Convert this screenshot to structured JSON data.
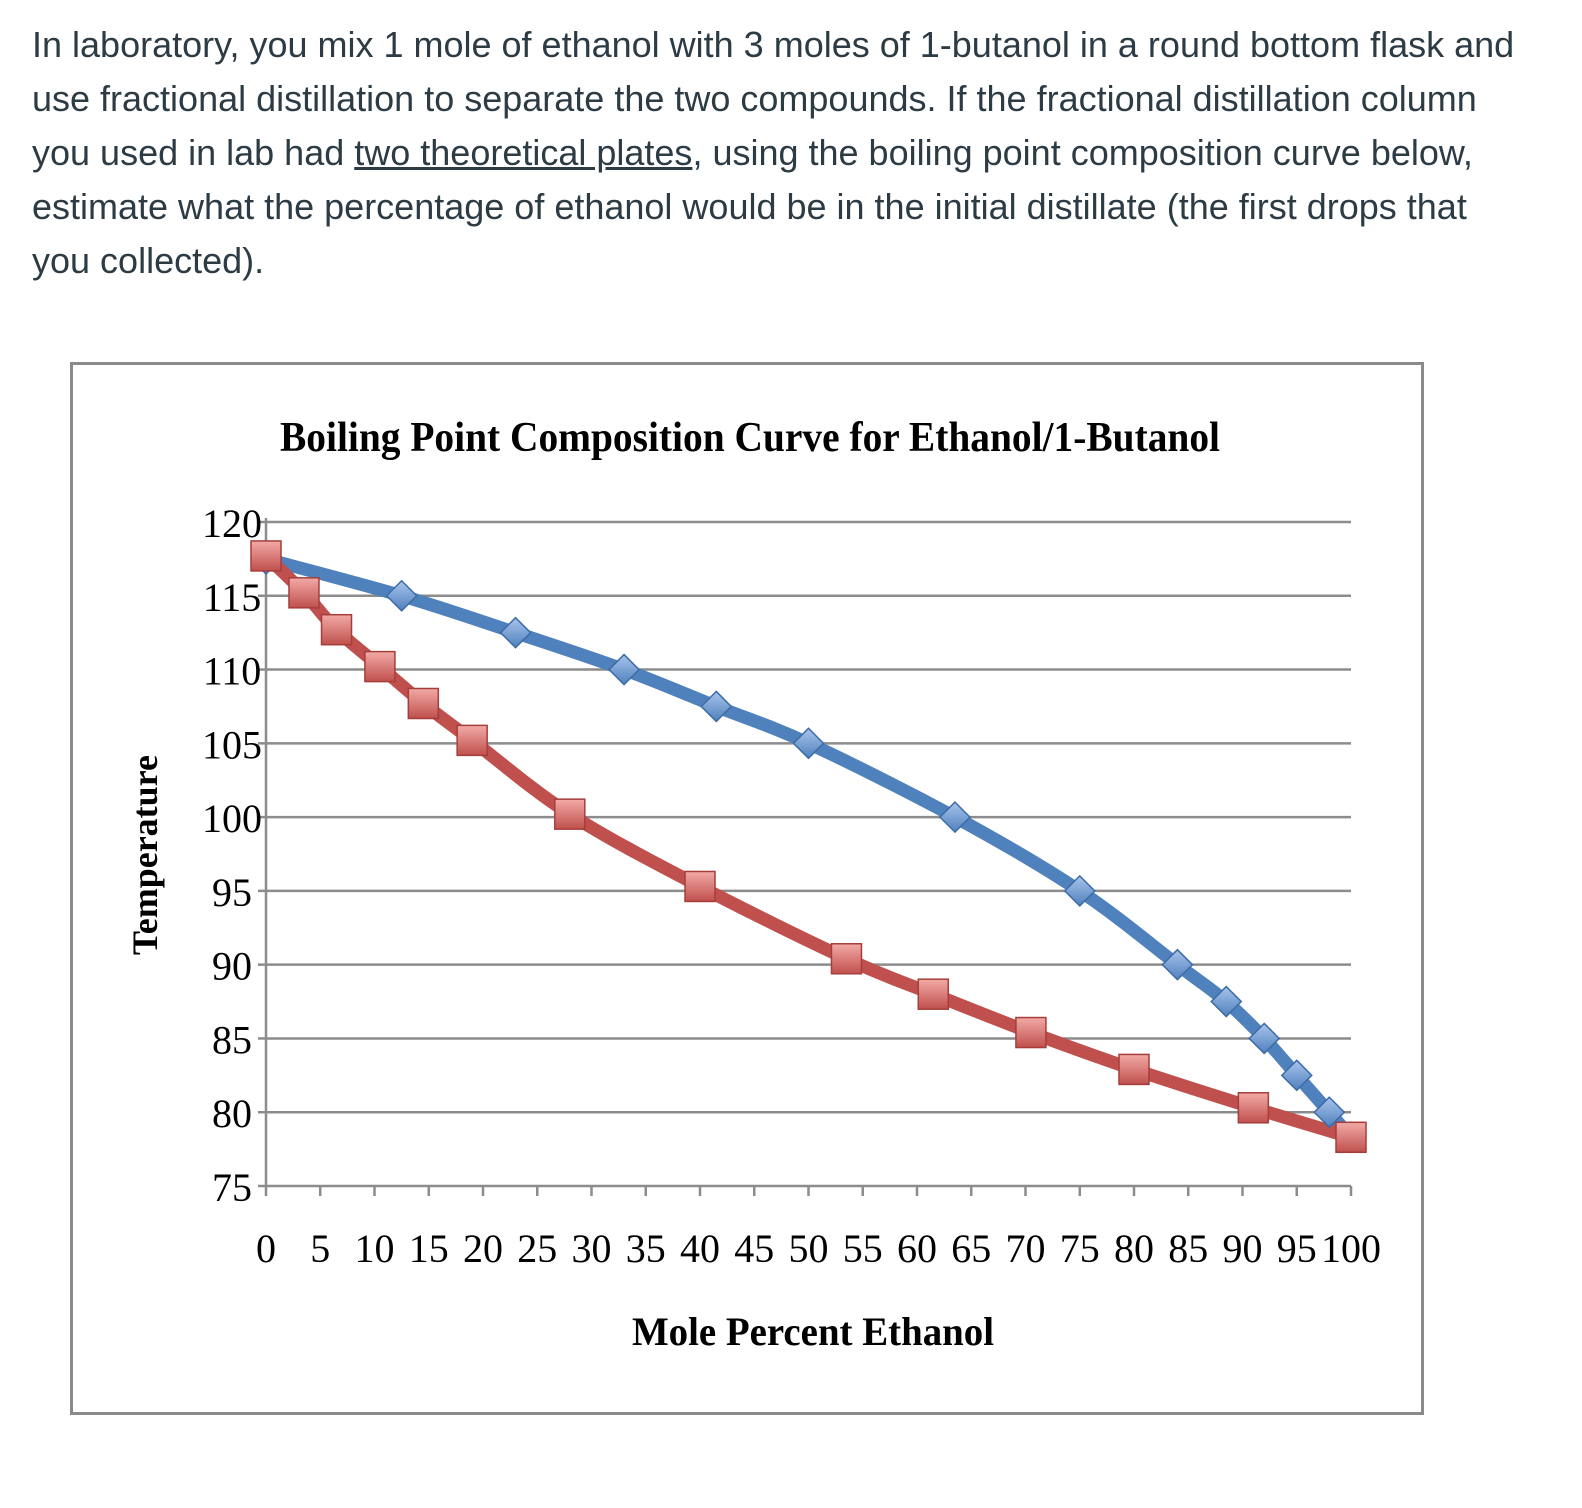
{
  "question": {
    "part1": "In laboratory, you mix 1 mole of ethanol with 3 moles of 1-butanol in a round bottom flask and use fractional distillation to separate the two compounds.  If the fractional distillation column you used in lab had ",
    "underlined": "two theoretical plates",
    "part2": ", using the boiling point composition curve below, estimate what the percentage of ethanol would be in the initial distillate (the first drops that you collected)."
  },
  "chart_data": {
    "type": "line",
    "title": "Boiling Point Composition Curve for Ethanol/1-Butanol",
    "xlabel": "Mole Percent Ethanol",
    "ylabel": "Temperature",
    "xlim": [
      0,
      100
    ],
    "ylim": [
      75,
      120
    ],
    "x_ticks": [
      0,
      5,
      10,
      15,
      20,
      25,
      30,
      35,
      40,
      45,
      50,
      55,
      60,
      65,
      70,
      75,
      80,
      85,
      90,
      95,
      100
    ],
    "y_ticks": [
      75,
      80,
      85,
      90,
      95,
      100,
      105,
      110,
      115,
      120
    ],
    "grid": "horizontal",
    "legend": "none",
    "series": [
      {
        "color": "#4f81bd",
        "marker": "diamond",
        "points": [
          [
            0,
            117.5
          ],
          [
            12.5,
            115
          ],
          [
            23,
            112.5
          ],
          [
            33,
            110
          ],
          [
            41.5,
            107.5
          ],
          [
            50,
            105
          ],
          [
            63.5,
            100
          ],
          [
            75,
            95
          ],
          [
            84,
            90
          ],
          [
            88.5,
            87.5
          ],
          [
            92,
            85
          ],
          [
            95,
            82.5
          ],
          [
            98,
            80
          ],
          [
            100,
            78.3
          ]
        ]
      },
      {
        "color": "#c0504d",
        "marker": "square",
        "points": [
          [
            0,
            117.7
          ],
          [
            3.5,
            115.2
          ],
          [
            6.5,
            112.7
          ],
          [
            10.5,
            110.2
          ],
          [
            14.5,
            107.7
          ],
          [
            19,
            105.2
          ],
          [
            28,
            100.2
          ],
          [
            40,
            95.3
          ],
          [
            53.5,
            90.4
          ],
          [
            61.5,
            88
          ],
          [
            70.5,
            85.4
          ],
          [
            80,
            82.9
          ],
          [
            91,
            80.3
          ],
          [
            100,
            78.3
          ]
        ]
      }
    ]
  }
}
